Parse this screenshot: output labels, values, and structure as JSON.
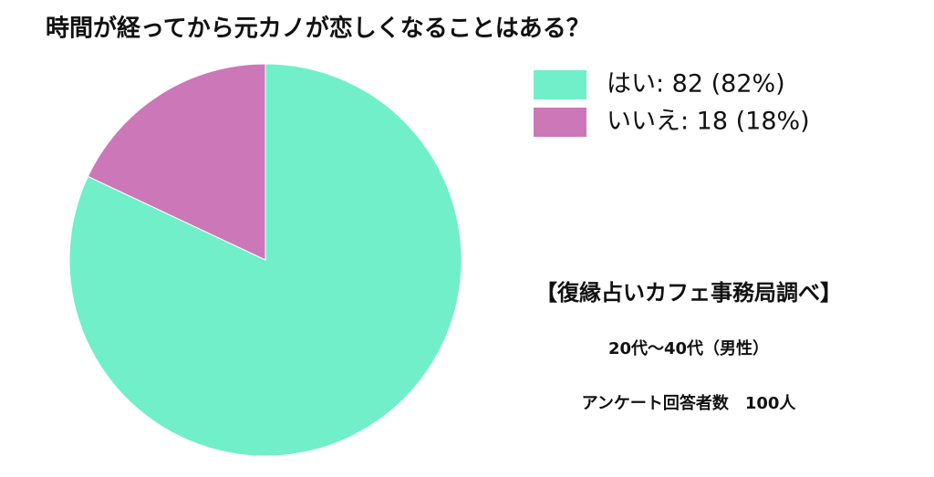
{
  "chart_data": {
    "type": "pie",
    "title": "時間が経ってから元カノが恋しくなることはある？",
    "categories": [
      "はい: 82 (82%)",
      "いいえ: 18 (18%)"
    ],
    "values": [
      82,
      18
    ],
    "colors": [
      "#70efc9",
      "#cc77b8"
    ],
    "annotations": [
      "【復縁占いカフェ事務局調べ】",
      "20代〜40代（男性）",
      "アンケート回答者数　100人"
    ]
  }
}
